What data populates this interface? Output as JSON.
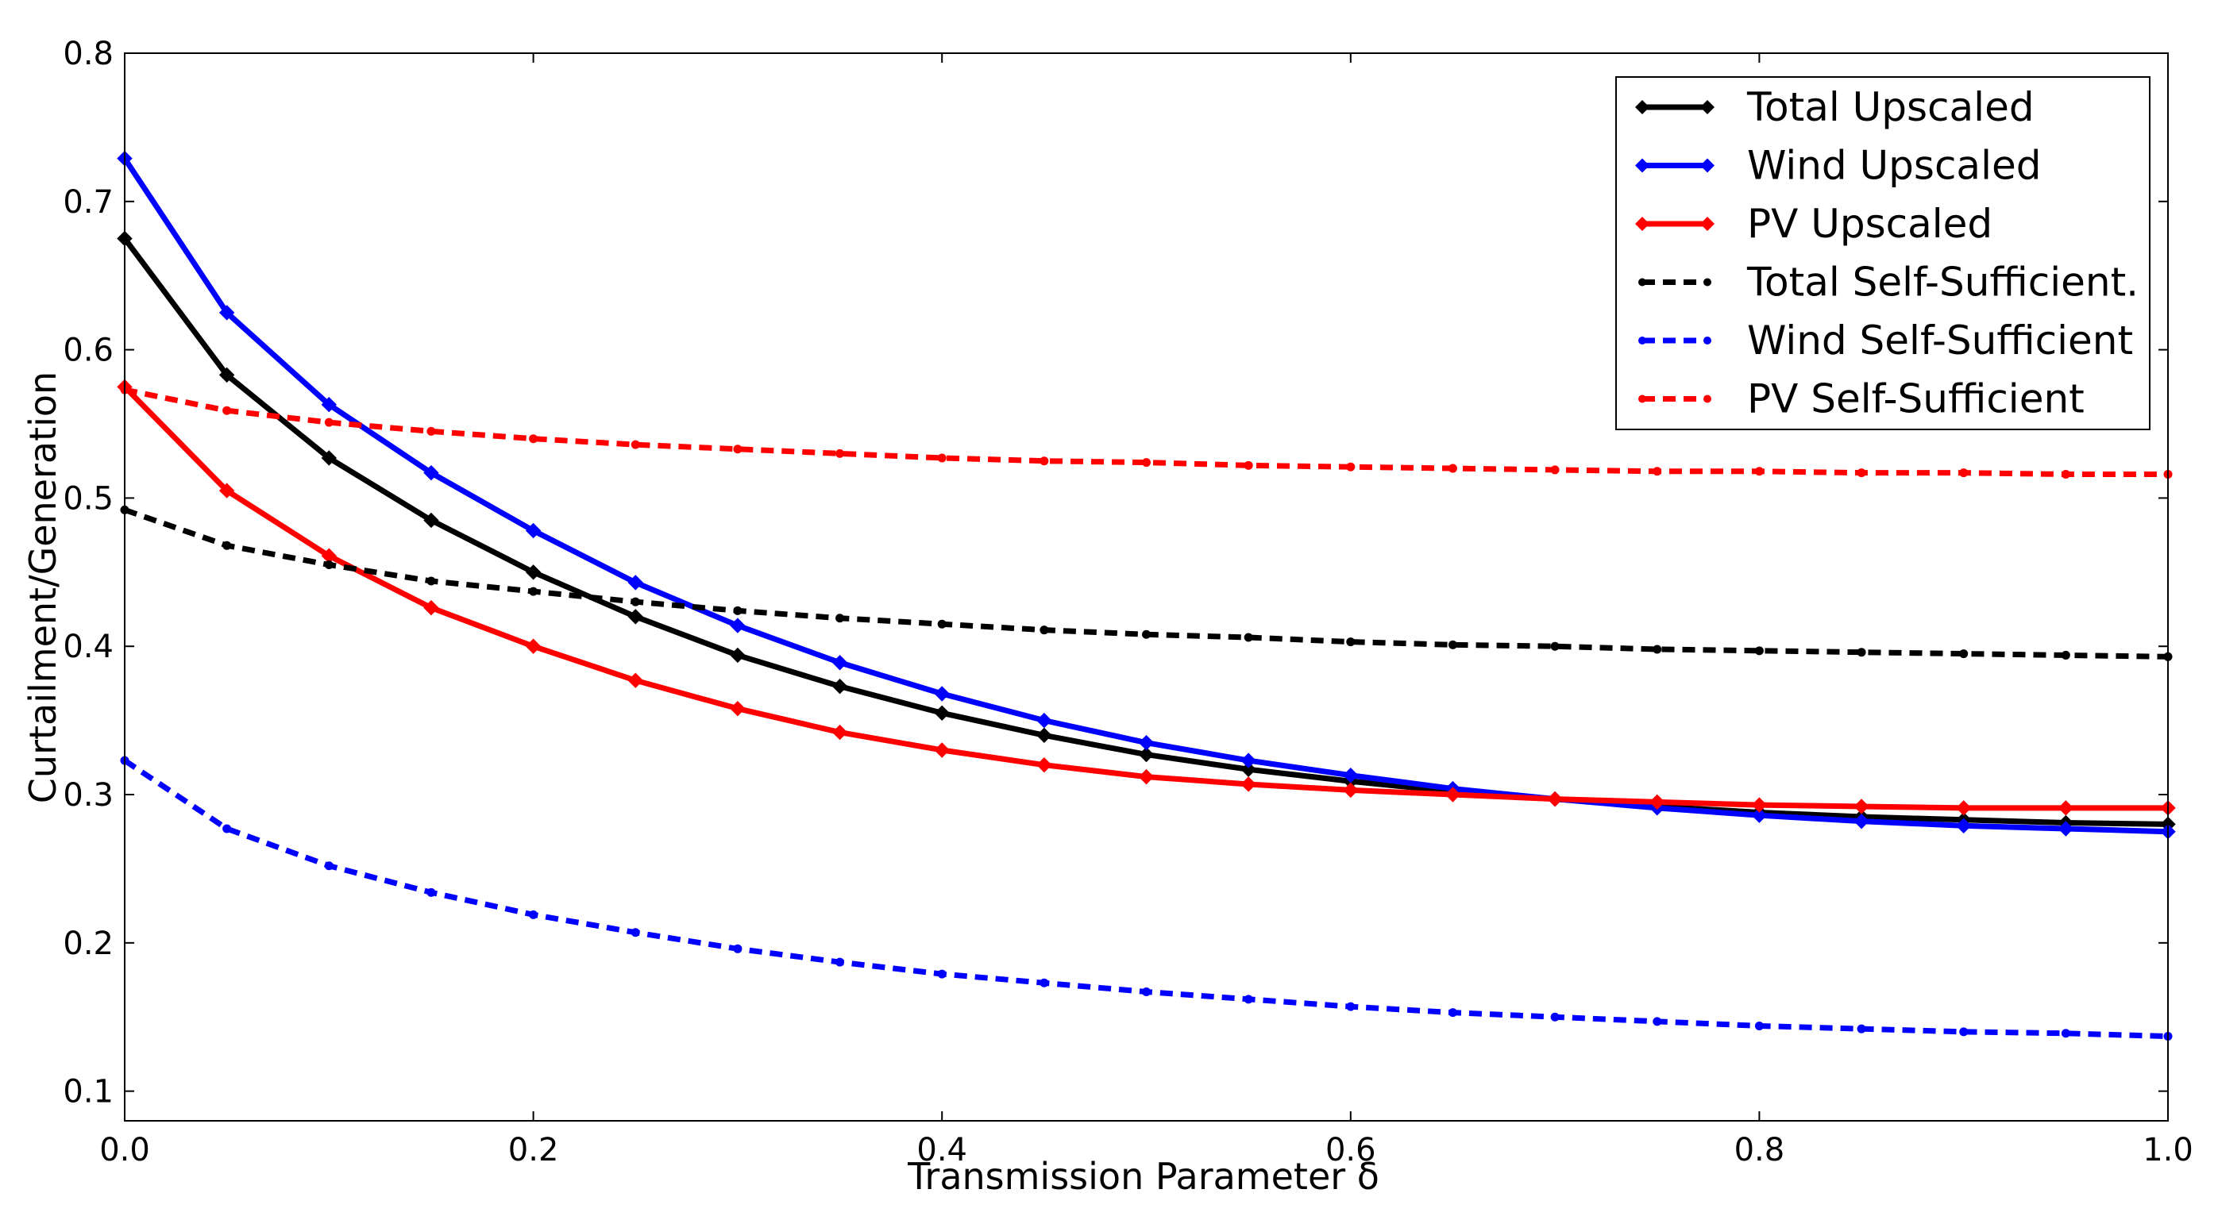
{
  "chart_data": {
    "type": "line",
    "title": "",
    "xlabel": "Transmission Parameter δ",
    "ylabel": "Curtailment/Generation",
    "xlim": [
      0.0,
      1.0
    ],
    "ylim": [
      0.08,
      0.8
    ],
    "xticks": [
      0.0,
      0.2,
      0.4,
      0.6,
      0.8,
      1.0
    ],
    "xtick_labels": [
      "0.0",
      "0.2",
      "0.4",
      "0.6",
      "0.8",
      "1.0"
    ],
    "yticks": [
      0.1,
      0.2,
      0.3,
      0.4,
      0.5,
      0.6,
      0.7,
      0.8
    ],
    "ytick_labels": [
      "0.1",
      "0.2",
      "0.3",
      "0.4",
      "0.5",
      "0.6",
      "0.7",
      "0.8"
    ],
    "grid": false,
    "legend_position": "top-right",
    "x": [
      0.0,
      0.05,
      0.1,
      0.15,
      0.2,
      0.25,
      0.3,
      0.35,
      0.4,
      0.45,
      0.5,
      0.55,
      0.6,
      0.65,
      0.7,
      0.75,
      0.8,
      0.85,
      0.9,
      0.95,
      1.0
    ],
    "series": [
      {
        "name": "Total Upscaled",
        "color": "#000000",
        "style": "solid",
        "marker": "diamond",
        "values": [
          0.675,
          0.583,
          0.527,
          0.485,
          0.45,
          0.42,
          0.394,
          0.373,
          0.355,
          0.34,
          0.327,
          0.317,
          0.309,
          0.302,
          0.297,
          0.292,
          0.288,
          0.285,
          0.283,
          0.281,
          0.28
        ]
      },
      {
        "name": "Wind Upscaled",
        "color": "#0000ff",
        "style": "solid",
        "marker": "diamond",
        "values": [
          0.729,
          0.625,
          0.563,
          0.517,
          0.478,
          0.443,
          0.414,
          0.389,
          0.368,
          0.35,
          0.335,
          0.323,
          0.313,
          0.304,
          0.297,
          0.291,
          0.286,
          0.282,
          0.279,
          0.277,
          0.275
        ]
      },
      {
        "name": "PV Upscaled",
        "color": "#ff0000",
        "style": "solid",
        "marker": "diamond",
        "values": [
          0.575,
          0.505,
          0.461,
          0.426,
          0.4,
          0.377,
          0.358,
          0.342,
          0.33,
          0.32,
          0.312,
          0.307,
          0.303,
          0.3,
          0.297,
          0.295,
          0.293,
          0.292,
          0.291,
          0.291,
          0.291
        ]
      },
      {
        "name": "Total Self-Sufficient.",
        "color": "#000000",
        "style": "dashed",
        "marker": "circle",
        "values": [
          0.492,
          0.468,
          0.455,
          0.444,
          0.437,
          0.43,
          0.424,
          0.419,
          0.415,
          0.411,
          0.408,
          0.406,
          0.403,
          0.401,
          0.4,
          0.398,
          0.397,
          0.396,
          0.395,
          0.394,
          0.393
        ]
      },
      {
        "name": "Wind Self-Sufficient",
        "color": "#0000ff",
        "style": "dashed",
        "marker": "circle",
        "values": [
          0.323,
          0.277,
          0.252,
          0.234,
          0.219,
          0.207,
          0.196,
          0.187,
          0.179,
          0.173,
          0.167,
          0.162,
          0.157,
          0.153,
          0.15,
          0.147,
          0.144,
          0.142,
          0.14,
          0.139,
          0.137
        ]
      },
      {
        "name": "PV Self-Sufficient",
        "color": "#ff0000",
        "style": "dashed",
        "marker": "circle",
        "values": [
          0.573,
          0.559,
          0.551,
          0.545,
          0.54,
          0.536,
          0.533,
          0.53,
          0.527,
          0.525,
          0.524,
          0.522,
          0.521,
          0.52,
          0.519,
          0.518,
          0.518,
          0.517,
          0.517,
          0.516,
          0.516
        ]
      }
    ]
  }
}
